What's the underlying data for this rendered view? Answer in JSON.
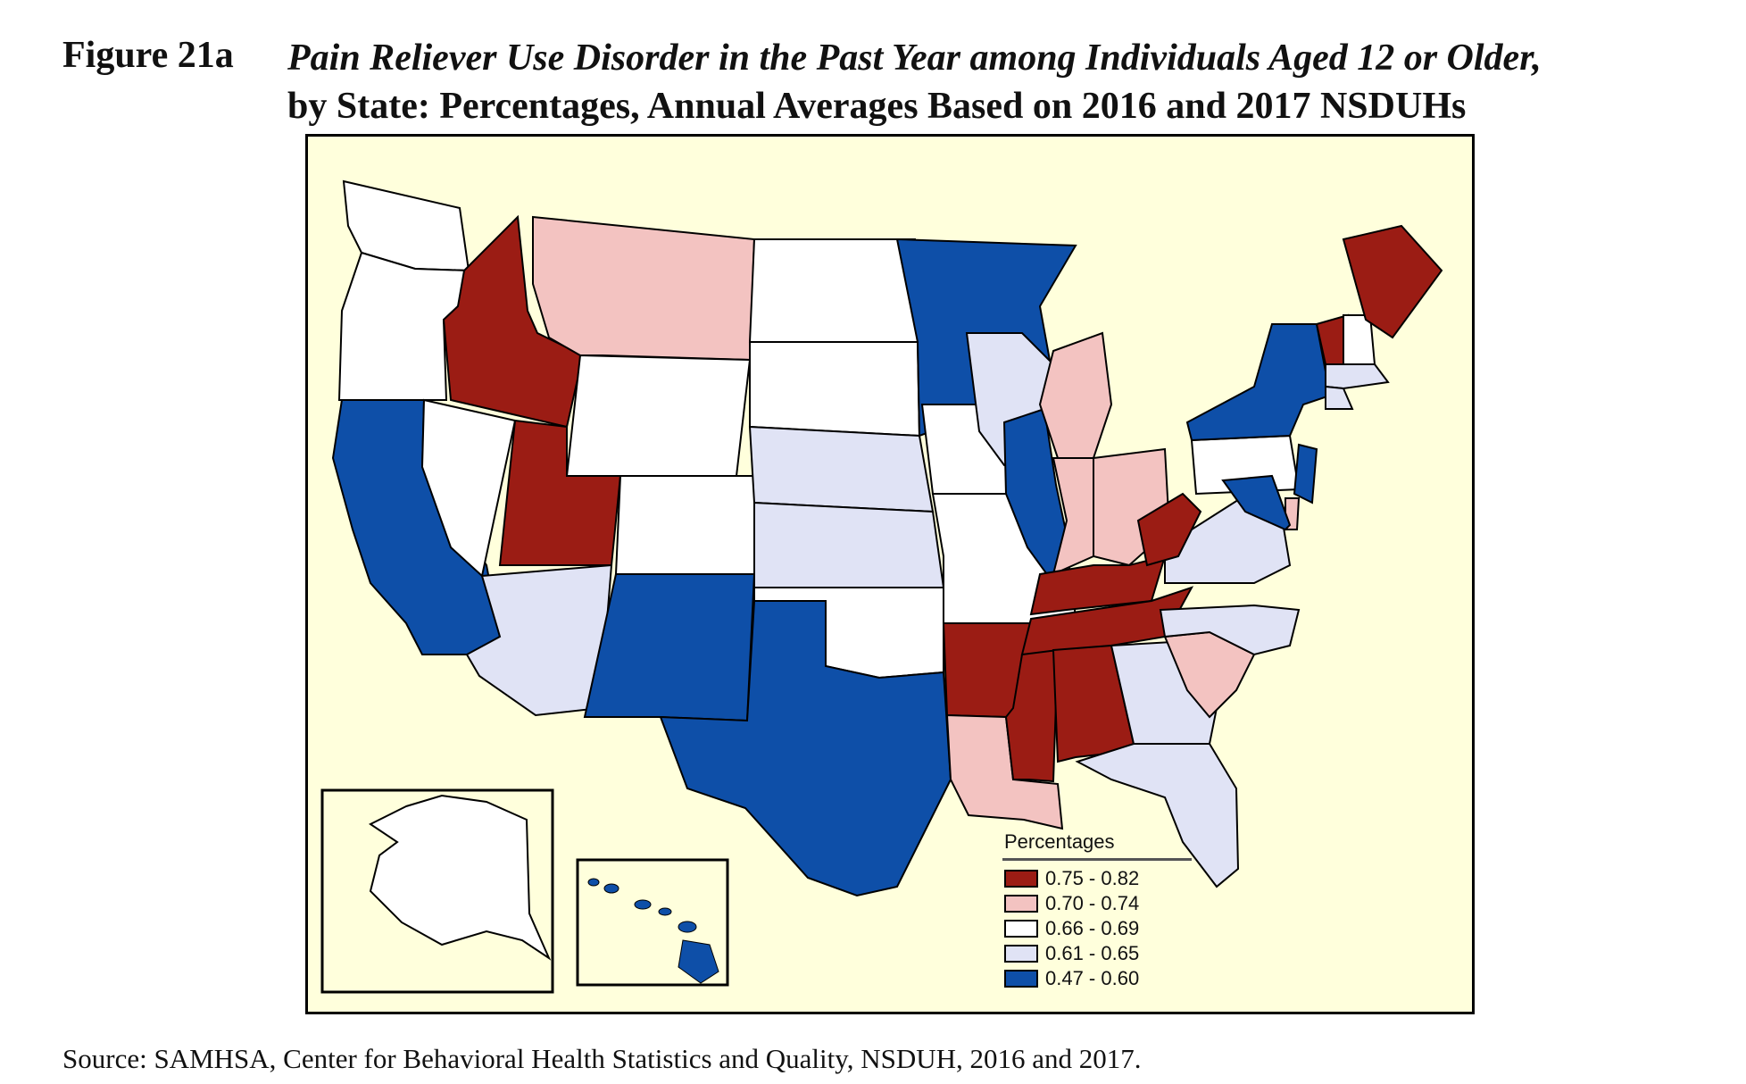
{
  "header": {
    "figure_number": "Figure 21a",
    "title_italic": "Pain Reliever Use Disorder in the Past Year among Individuals Aged 12 or Older,",
    "title_rest": "by State: Percentages, Annual Averages Based on 2016 and 2017 NSDUHs"
  },
  "legend": {
    "title": "Percentages",
    "items": [
      {
        "label": "0.75 - 0.82",
        "color": "#9b1c14"
      },
      {
        "label": "0.70 - 0.74",
        "color": "#f3c3c1"
      },
      {
        "label": "0.66 - 0.69",
        "color": "#ffffff"
      },
      {
        "label": "0.61 - 0.65",
        "color": "#e0e3f5"
      },
      {
        "label": "0.47 - 0.60",
        "color": "#0e4fa8"
      }
    ]
  },
  "categories": {
    "0.75 - 0.82": [
      "ID",
      "UT",
      "AR",
      "MS",
      "AL",
      "TN",
      "KY",
      "WV",
      "VT",
      "ME"
    ],
    "0.70 - 0.74": [
      "MT",
      "MI",
      "IN",
      "OH",
      "SC",
      "LA",
      "DE"
    ],
    "0.66 - 0.69": [
      "WA",
      "OR",
      "NV",
      "WY",
      "ND",
      "SD",
      "CO",
      "IA",
      "MO",
      "OK",
      "PA",
      "NH",
      "AK"
    ],
    "0.61 - 0.65": [
      "AZ",
      "NE",
      "KS",
      "WI",
      "VA",
      "NC",
      "GA",
      "FL",
      "MA",
      "CT"
    ],
    "0.47 - 0.60": [
      "CA",
      "NM",
      "TX",
      "MN",
      "IL",
      "NY",
      "NJ",
      "MD",
      "HI"
    ]
  },
  "source": "Source:   SAMHSA, Center for Behavioral Health Statistics and Quality, NSDUH, 2016 and 2017."
}
